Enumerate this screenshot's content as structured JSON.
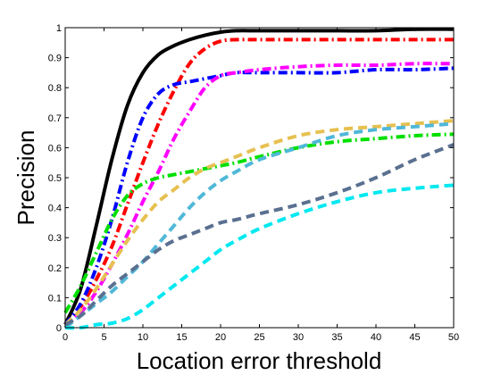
{
  "chart_data": {
    "type": "line",
    "title": "",
    "xlabel": "Location error threshold",
    "ylabel": "Precision",
    "xlim": [
      0,
      50
    ],
    "ylim": [
      0,
      1.0
    ],
    "xticks": [
      "0",
      "5",
      "10",
      "15",
      "20",
      "25",
      "30",
      "35",
      "40",
      "45",
      "50"
    ],
    "yticks": [
      "0",
      "0.1",
      "0.2",
      "0.3",
      "0.4",
      "0.5",
      "0.6",
      "0.7",
      "0.8",
      "0.9",
      "1"
    ],
    "grid": false,
    "legend": false,
    "x": [
      0,
      2,
      4,
      6,
      8,
      10,
      12,
      14,
      16,
      18,
      20,
      22,
      25,
      30,
      35,
      40,
      45,
      50
    ],
    "series": [
      {
        "color": "#000000",
        "style": "solid",
        "values": [
          0.01,
          0.13,
          0.34,
          0.56,
          0.74,
          0.85,
          0.91,
          0.94,
          0.96,
          0.975,
          0.985,
          0.99,
          0.99,
          0.99,
          0.99,
          0.99,
          0.995,
          0.995
        ]
      },
      {
        "color": "#ff0000",
        "style": "dashdot",
        "values": [
          0.01,
          0.07,
          0.16,
          0.27,
          0.41,
          0.55,
          0.68,
          0.79,
          0.88,
          0.93,
          0.955,
          0.96,
          0.96,
          0.96,
          0.96,
          0.96,
          0.96,
          0.96
        ]
      },
      {
        "color": "#0000ff",
        "style": "dashdot",
        "values": [
          0.01,
          0.08,
          0.2,
          0.36,
          0.55,
          0.7,
          0.78,
          0.81,
          0.82,
          0.83,
          0.84,
          0.85,
          0.85,
          0.85,
          0.85,
          0.86,
          0.86,
          0.865
        ]
      },
      {
        "color": "#ff00ff",
        "style": "dashdot",
        "values": [
          0.01,
          0.05,
          0.12,
          0.21,
          0.31,
          0.42,
          0.52,
          0.63,
          0.72,
          0.8,
          0.84,
          0.85,
          0.86,
          0.87,
          0.875,
          0.875,
          0.88,
          0.88
        ]
      },
      {
        "color": "#00e000",
        "style": "dashdot",
        "values": [
          0.05,
          0.14,
          0.25,
          0.36,
          0.44,
          0.48,
          0.5,
          0.51,
          0.52,
          0.53,
          0.54,
          0.55,
          0.57,
          0.6,
          0.62,
          0.63,
          0.64,
          0.645
        ]
      },
      {
        "color": "#e6c050",
        "style": "dashed",
        "values": [
          0.01,
          0.06,
          0.13,
          0.21,
          0.29,
          0.36,
          0.42,
          0.46,
          0.5,
          0.53,
          0.55,
          0.57,
          0.6,
          0.64,
          0.66,
          0.67,
          0.68,
          0.69
        ]
      },
      {
        "color": "#50b8d8",
        "style": "dashed",
        "values": [
          0.0,
          0.04,
          0.08,
          0.12,
          0.17,
          0.22,
          0.28,
          0.34,
          0.4,
          0.45,
          0.49,
          0.52,
          0.56,
          0.6,
          0.64,
          0.66,
          0.67,
          0.68
        ]
      },
      {
        "color": "#5a7090",
        "style": "dashed",
        "values": [
          0.01,
          0.04,
          0.09,
          0.14,
          0.18,
          0.22,
          0.26,
          0.29,
          0.31,
          0.33,
          0.35,
          0.36,
          0.38,
          0.41,
          0.45,
          0.5,
          0.56,
          0.61
        ]
      },
      {
        "color": "#00e8f0",
        "style": "dashed",
        "values": [
          0.0,
          0.0,
          0.01,
          0.015,
          0.03,
          0.06,
          0.1,
          0.14,
          0.18,
          0.22,
          0.26,
          0.29,
          0.33,
          0.38,
          0.42,
          0.45,
          0.465,
          0.475
        ]
      }
    ]
  }
}
